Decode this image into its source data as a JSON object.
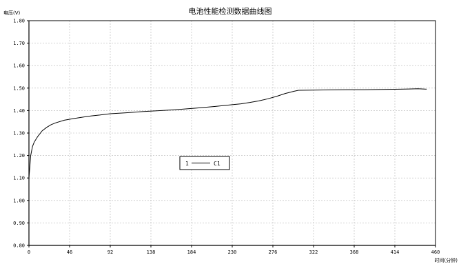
{
  "chart_data": {
    "type": "line",
    "title": "电池性能检测数据曲线图",
    "ylabel": "电压(V)",
    "xlabel": "时间(分钟)",
    "xlim": [
      0,
      460
    ],
    "ylim": [
      0.8,
      1.8
    ],
    "x_ticks": [
      "0",
      "46",
      "92",
      "138",
      "184",
      "230",
      "276",
      "322",
      "368",
      "414",
      "460"
    ],
    "y_ticks": [
      "0.80",
      "0.90",
      "1.00",
      "1.10",
      "1.20",
      "1.30",
      "1.40",
      "1.50",
      "1.60",
      "1.70",
      "1.80"
    ],
    "grid": true,
    "legend": {
      "placement": "center",
      "index": "1",
      "label": "C1"
    },
    "series": [
      {
        "name": "C1",
        "x": [
          0,
          1,
          2,
          4,
          6,
          10,
          15,
          20,
          25,
          30,
          40,
          50,
          60,
          70,
          80,
          92,
          110,
          130,
          150,
          170,
          190,
          210,
          230,
          240,
          250,
          260,
          270,
          280,
          290,
          300,
          305,
          320,
          340,
          360,
          380,
          400,
          420,
          430,
          440,
          450
        ],
        "y": [
          1.1,
          1.15,
          1.2,
          1.24,
          1.26,
          1.285,
          1.31,
          1.325,
          1.337,
          1.345,
          1.357,
          1.364,
          1.37,
          1.376,
          1.38,
          1.386,
          1.39,
          1.396,
          1.4,
          1.405,
          1.411,
          1.418,
          1.426,
          1.43,
          1.436,
          1.443,
          1.452,
          1.463,
          1.476,
          1.486,
          1.49,
          1.491,
          1.492,
          1.493,
          1.493,
          1.494,
          1.495,
          1.496,
          1.497,
          1.495
        ]
      }
    ]
  }
}
